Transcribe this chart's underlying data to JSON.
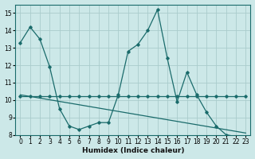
{
  "xlabel": "Humidex (Indice chaleur)",
  "bg_color": "#cce8e8",
  "grid_color": "#aacccc",
  "line_color": "#1a6b6b",
  "xlim": [
    -0.5,
    23.5
  ],
  "ylim": [
    8,
    15.5
  ],
  "yticks": [
    8,
    9,
    10,
    11,
    12,
    13,
    14,
    15
  ],
  "xticks": [
    0,
    1,
    2,
    3,
    4,
    5,
    6,
    7,
    8,
    9,
    10,
    11,
    12,
    13,
    14,
    15,
    16,
    17,
    18,
    19,
    20,
    21,
    22,
    23
  ],
  "series_flat_x": [
    0,
    1,
    2,
    3,
    4,
    5,
    6,
    7,
    8,
    9,
    10,
    11,
    12,
    13,
    14,
    15,
    16,
    17,
    18,
    19,
    20,
    21,
    22,
    23
  ],
  "series_flat_y": [
    10.2,
    10.2,
    10.2,
    10.2,
    10.2,
    10.2,
    10.2,
    10.2,
    10.2,
    10.2,
    10.2,
    10.2,
    10.2,
    10.2,
    10.2,
    10.2,
    10.2,
    10.2,
    10.2,
    10.2,
    10.2,
    10.2,
    10.2,
    10.2
  ],
  "series_decline_x": [
    0,
    23
  ],
  "series_decline_y": [
    10.3,
    8.1
  ],
  "series_main_x": [
    0,
    1,
    2,
    3,
    4,
    5,
    6,
    7,
    8,
    9,
    10,
    11,
    12,
    13,
    14,
    15,
    16,
    17,
    18,
    19,
    20,
    21,
    22,
    23
  ],
  "series_main_y": [
    13.3,
    14.2,
    13.5,
    11.9,
    9.5,
    8.5,
    8.3,
    8.5,
    8.7,
    8.7,
    10.3,
    12.8,
    13.2,
    14.0,
    15.2,
    12.4,
    9.9,
    11.6,
    10.3,
    9.3,
    8.5,
    8.0,
    7.9,
    7.8
  ]
}
